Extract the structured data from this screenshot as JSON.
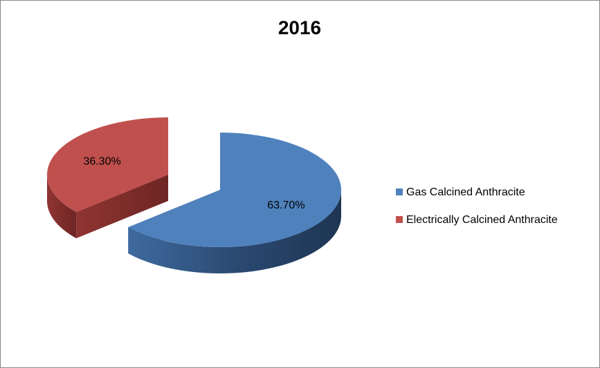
{
  "chart_data": {
    "type": "pie",
    "title": "2016",
    "categories": [
      "Gas Calcined Anthracite",
      "Electrically Calcined Anthracite"
    ],
    "values": [
      63.7,
      36.3
    ],
    "value_labels": [
      "63.70%",
      "36.30%"
    ],
    "colors": [
      "#4f81bd",
      "#c0504d"
    ],
    "legend": "right"
  }
}
